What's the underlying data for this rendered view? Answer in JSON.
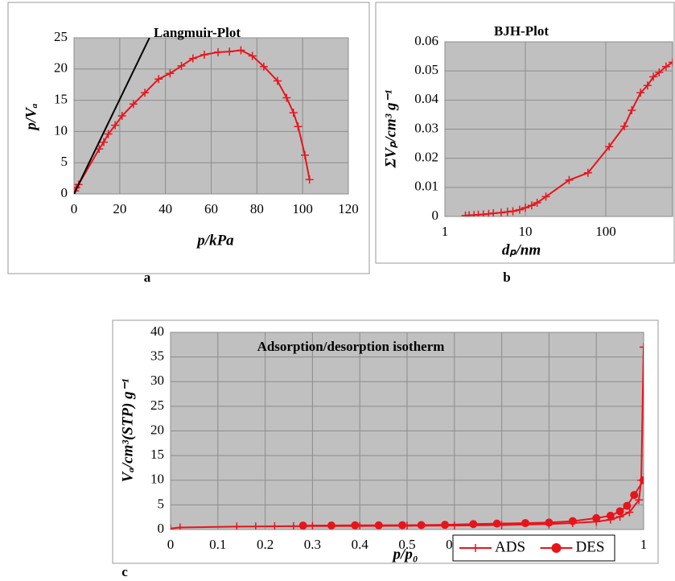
{
  "chart_data": [
    {
      "type": "line",
      "title": "Langmuir-Plot",
      "x_label": "p/kPa",
      "y_label": "p/Vₐ",
      "panel_label": "a",
      "xlim": [
        0,
        120
      ],
      "xticks": [
        0,
        20,
        40,
        60,
        80,
        100,
        120
      ],
      "ylim": [
        0,
        25
      ],
      "yticks": [
        0,
        5,
        10,
        15,
        20,
        25
      ],
      "grid": true,
      "series": [
        {
          "color": "#e8141b",
          "marker": "plus",
          "x": [
            0.5,
            1,
            2,
            11,
            13,
            15,
            18,
            21,
            26,
            31,
            37,
            42,
            47,
            52,
            57,
            63,
            68,
            73,
            78,
            83,
            89,
            93,
            96,
            98,
            101,
            103
          ],
          "values": [
            0.5,
            1,
            1.5,
            7.2,
            8.3,
            9.6,
            11,
            12.5,
            14.4,
            16.2,
            18.4,
            19.3,
            20.5,
            21.7,
            22.3,
            22.7,
            22.8,
            23,
            22.1,
            20.4,
            18.1,
            15.4,
            13,
            10.8,
            6.2,
            2.3
          ]
        },
        {
          "color": "#000000",
          "marker": "none",
          "x": [
            0,
            33
          ],
          "values": [
            0,
            25
          ]
        }
      ]
    },
    {
      "type": "line",
      "title": "BJH-Plot",
      "x_label": "dₚ/nm",
      "y_label": "ΣVₚ/cm³ g⁻¹",
      "panel_label": "b",
      "xscale": "log",
      "xlim": [
        1,
        676
      ],
      "xticks": [
        1,
        10,
        100
      ],
      "ylim": [
        0,
        0.06
      ],
      "yticks": [
        0,
        0.01,
        0.02,
        0.03,
        0.04,
        0.05,
        0.06
      ],
      "grid": true,
      "series": [
        {
          "color": "#e8141b",
          "marker": "plus",
          "x": [
            1.8,
            2,
            2.3,
            2.6,
            3,
            3.5,
            4,
            5,
            6,
            7,
            8.5,
            10,
            12,
            14,
            18,
            35,
            60,
            110,
            170,
            210,
            270,
            330,
            390,
            460,
            560,
            676
          ],
          "values": [
            0.0003,
            0.0004,
            0.0005,
            0.0006,
            0.0007,
            0.0009,
            0.0011,
            0.0013,
            0.0016,
            0.0018,
            0.0023,
            0.003,
            0.0038,
            0.0047,
            0.0068,
            0.0125,
            0.015,
            0.024,
            0.031,
            0.0365,
            0.0425,
            0.045,
            0.048,
            0.0495,
            0.0515,
            0.053
          ]
        }
      ]
    },
    {
      "type": "line",
      "title": "Adsorption/desorption isotherm",
      "x_label": "p/p₀",
      "y_label": "Vₐ/cm³(STP) g⁻¹",
      "panel_label": "c",
      "xlim": [
        0,
        1
      ],
      "xticks": [
        0,
        0.1,
        0.2,
        0.3,
        0.4,
        0.5,
        0.6,
        0.7,
        0.8,
        0.9,
        1
      ],
      "ylim": [
        0,
        40
      ],
      "yticks": [
        0,
        5,
        10,
        15,
        20,
        25,
        30,
        35,
        40
      ],
      "grid": true,
      "legend": "lower right",
      "series": [
        {
          "name": "ADS",
          "color": "#e8141b",
          "marker": "plus",
          "x": [
            0,
            0.02,
            0.14,
            0.18,
            0.22,
            0.26,
            0.3,
            0.4,
            0.5,
            0.6,
            0.7,
            0.8,
            0.85,
            0.9,
            0.93,
            0.95,
            0.97,
            0.99,
            0.995,
            1
          ],
          "values": [
            0.2,
            0.4,
            0.6,
            0.62,
            0.65,
            0.67,
            0.7,
            0.72,
            0.75,
            0.8,
            0.9,
            1.1,
            1.3,
            1.6,
            2,
            2.6,
            3.5,
            6,
            10,
            37
          ]
        },
        {
          "name": "DES",
          "color": "#e8141b",
          "marker": "circle",
          "x": [
            1,
            0.98,
            0.965,
            0.95,
            0.93,
            0.9,
            0.85,
            0.8,
            0.75,
            0.69,
            0.64,
            0.58,
            0.53,
            0.49,
            0.44,
            0.39,
            0.34,
            0.28
          ],
          "values": [
            10,
            7,
            4.8,
            3.7,
            2.8,
            2.3,
            1.7,
            1.4,
            1.3,
            1.2,
            1.1,
            0.95,
            0.9,
            0.88,
            0.85,
            0.85,
            0.82,
            0.8
          ]
        }
      ]
    }
  ]
}
